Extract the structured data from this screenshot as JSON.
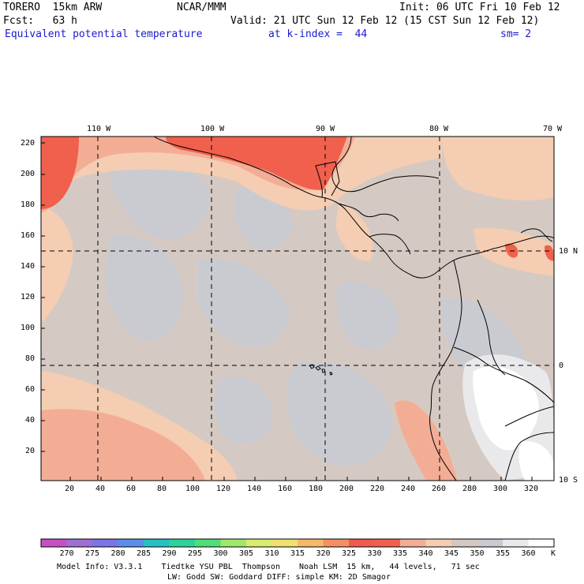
{
  "header": {
    "model": "TORERO  15km ARW",
    "center": "NCAR/MMM",
    "init": "Init: 06 UTC Fri 10 Feb 12",
    "fcst": "Fcst:   63 h",
    "valid": "Valid: 21 UTC Sun 12 Feb 12 (15 CST Sun 12 Feb 12)",
    "field": "Equivalent potential temperature",
    "level": "at k-index =  44",
    "smooth": "sm= 2"
  },
  "map": {
    "lon_labels": [
      "110 W",
      "100 W",
      "90 W",
      "80 W",
      "70 W"
    ],
    "lat_labels": [
      "10 N",
      "0",
      "10 S"
    ],
    "y_ticks": [
      "220",
      "200",
      "180",
      "160",
      "140",
      "120",
      "100",
      "80",
      "60",
      "40",
      "20"
    ],
    "x_ticks": [
      "20",
      "40",
      "60",
      "80",
      "100",
      "120",
      "140",
      "160",
      "180",
      "200",
      "220",
      "240",
      "260",
      "280",
      "300",
      "320"
    ]
  },
  "colorbar": {
    "labels": [
      "270",
      "275",
      "280",
      "285",
      "290",
      "295",
      "300",
      "305",
      "310",
      "315",
      "320",
      "325",
      "330",
      "335",
      "340",
      "345",
      "350",
      "355",
      "360"
    ],
    "unit": "K",
    "colors": [
      "#c94fc4",
      "#9f6fd3",
      "#7d74e6",
      "#5b8ee6",
      "#28c0c0",
      "#2ed39a",
      "#4fde79",
      "#9fe86a",
      "#d8ec6e",
      "#f0e070",
      "#f5b96a",
      "#f49063",
      "#ef5b50",
      "#f0604c",
      "#f4ad95",
      "#f4cdb3",
      "#d4c8c0",
      "#c8cbd2",
      "#e9e9eb",
      "#ffffff"
    ]
  },
  "footer": {
    "line1": "Model Info: V3.3.1    Tiedtke YSU PBL  Thompson    Noah LSM  15 km,   44 levels,   71 sec",
    "line2": "LW: Godd SW: Goddard DIFF: simple KM: 2D Smagor"
  }
}
